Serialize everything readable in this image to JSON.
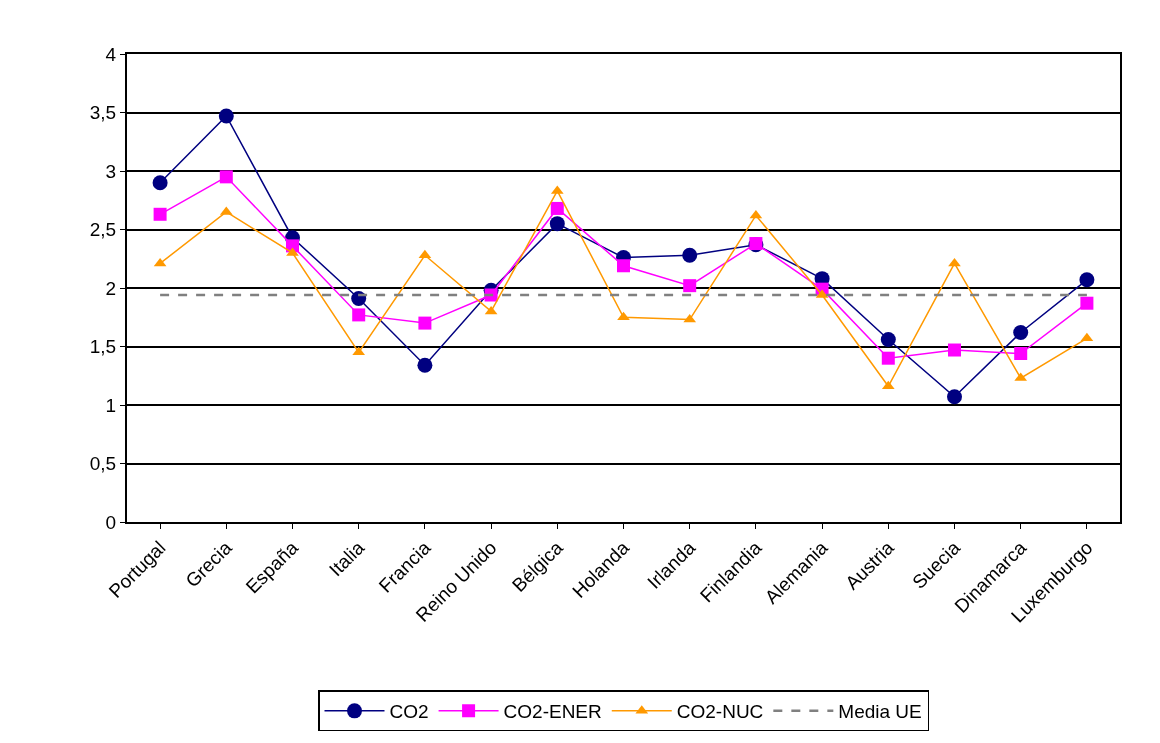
{
  "chart_data": {
    "type": "line",
    "categories": [
      "Portugal",
      "Grecia",
      "España",
      "Italia",
      "Francia",
      "Reino Unido",
      "Bélgica",
      "Holanda",
      "Irlanda",
      "Finlandia",
      "Alemania",
      "Austria",
      "Suecia",
      "Dinamarca",
      "Luxemburgo"
    ],
    "series": [
      {
        "name": "CO2",
        "color": "#000080",
        "marker": "circle",
        "values": [
          2.9,
          3.47,
          2.43,
          1.91,
          1.34,
          1.98,
          2.55,
          2.26,
          2.28,
          2.37,
          2.08,
          1.56,
          1.07,
          1.62,
          2.07
        ]
      },
      {
        "name": "CO2-ENER",
        "color": "#ff00ff",
        "marker": "square",
        "values": [
          2.63,
          2.95,
          2.36,
          1.77,
          1.7,
          1.94,
          2.68,
          2.19,
          2.02,
          2.38,
          1.99,
          1.4,
          1.47,
          1.44,
          1.87
        ]
      },
      {
        "name": "CO2-NUC",
        "color": "#ff9900",
        "marker": "triangle",
        "values": [
          2.21,
          2.65,
          2.3,
          1.45,
          2.28,
          1.8,
          2.83,
          1.75,
          1.73,
          2.62,
          1.94,
          1.16,
          2.21,
          1.23,
          1.57
        ]
      }
    ],
    "ref_lines": [
      {
        "axis": "y",
        "value": 1.94,
        "label": "Media UE",
        "color": "#808080",
        "line_style": "dashed"
      }
    ],
    "ylim": [
      0,
      4
    ],
    "yticks": [
      0,
      {
        "value": 0.5,
        "label": "0,5"
      },
      1,
      {
        "value": 1.5,
        "label": "1,5"
      },
      2,
      {
        "value": 2.5,
        "label": "2,5"
      },
      3,
      {
        "value": 3.5,
        "label": "3,5"
      },
      4
    ],
    "grid": "y",
    "legend": "bottom",
    "line_style": "solid"
  }
}
